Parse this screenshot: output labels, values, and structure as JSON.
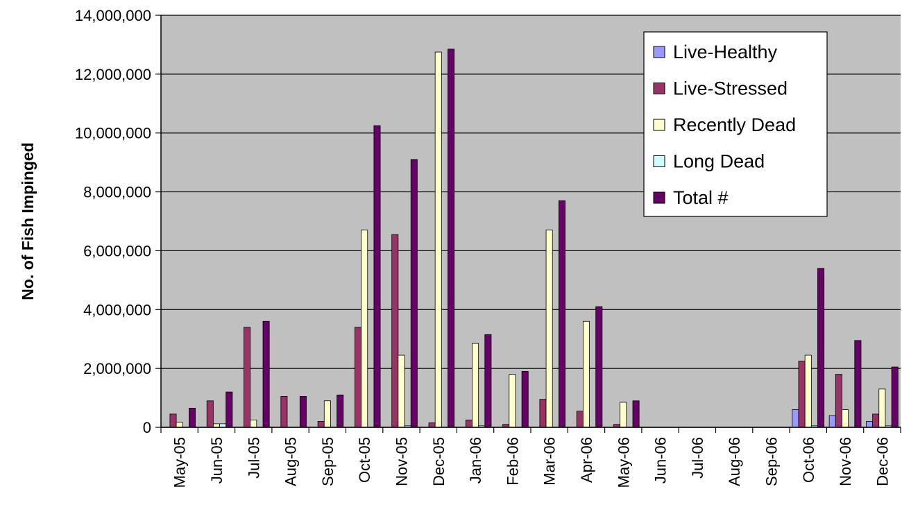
{
  "chart_data": {
    "type": "bar",
    "title": "",
    "xlabel": "",
    "ylabel": "No. of Fish Impinged",
    "ylim": [
      0,
      14000000
    ],
    "yticks": [
      0,
      2000000,
      4000000,
      6000000,
      8000000,
      10000000,
      12000000,
      14000000
    ],
    "ytick_labels": [
      "0",
      "2,000,000",
      "4,000,000",
      "6,000,000",
      "8,000,000",
      "10,000,000",
      "12,000,000",
      "14,000,000"
    ],
    "grid": true,
    "legend_position": "top-right",
    "categories": [
      "May-05",
      "Jun-05",
      "Jul-05",
      "Aug-05",
      "Sep-05",
      "Oct-05",
      "Nov-05",
      "Dec-05",
      "Jan-06",
      "Feb-06",
      "Mar-06",
      "Apr-06",
      "May-06",
      "Jun-06",
      "Jul-06",
      "Aug-06",
      "Sep-06",
      "Oct-06",
      "Nov-06",
      "Dec-06"
    ],
    "series": [
      {
        "name": "Live-Healthy",
        "color": "#9999FF",
        "values": [
          0,
          0,
          0,
          0,
          0,
          0,
          0,
          0,
          0,
          0,
          0,
          0,
          0,
          0,
          0,
          0,
          0,
          600000,
          400000,
          200000
        ]
      },
      {
        "name": "Live-Stressed",
        "color": "#993366",
        "values": [
          450000,
          900000,
          3400000,
          1050000,
          200000,
          3400000,
          6550000,
          150000,
          250000,
          100000,
          950000,
          550000,
          100000,
          0,
          0,
          0,
          0,
          2250000,
          1800000,
          450000
        ]
      },
      {
        "name": "Recently Dead",
        "color": "#FFFFCC",
        "values": [
          170000,
          120000,
          250000,
          0,
          900000,
          6700000,
          2450000,
          12750000,
          2850000,
          1800000,
          6700000,
          3600000,
          850000,
          0,
          0,
          0,
          0,
          2450000,
          600000,
          1300000
        ]
      },
      {
        "name": "Long Dead",
        "color": "#CCFFFF",
        "values": [
          0,
          120000,
          0,
          0,
          0,
          0,
          50000,
          0,
          50000,
          0,
          0,
          0,
          0,
          0,
          0,
          0,
          0,
          50000,
          0,
          50000
        ]
      },
      {
        "name": "Total #",
        "color": "#660066",
        "values": [
          650000,
          1200000,
          3600000,
          1050000,
          1100000,
          10250000,
          9100000,
          12850000,
          3150000,
          1900000,
          7700000,
          4100000,
          900000,
          0,
          0,
          0,
          0,
          5400000,
          2950000,
          2050000
        ]
      }
    ],
    "colors": {
      "plot_background": "#C0C0C0",
      "gridline": "#000000",
      "bar_outline": "#000000"
    }
  }
}
